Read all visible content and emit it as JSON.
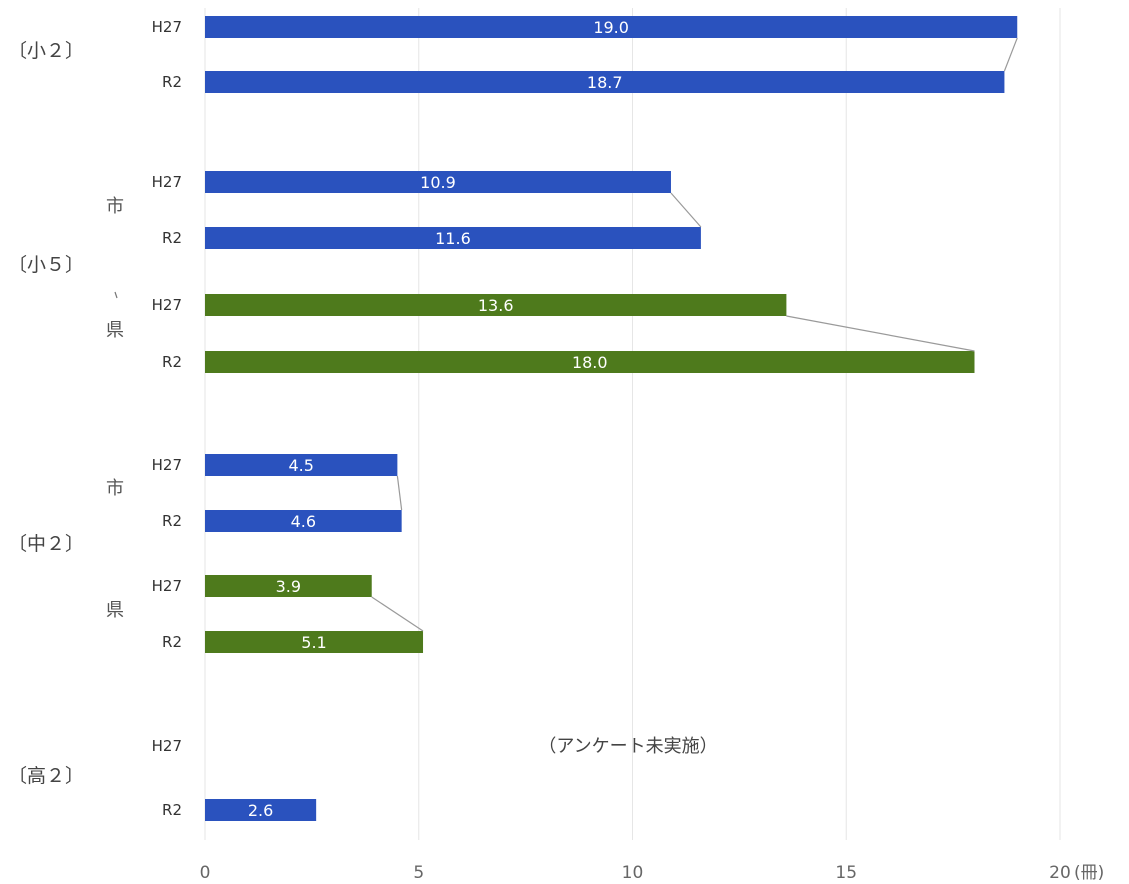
{
  "chart_data": {
    "type": "bar",
    "orientation": "horizontal",
    "unit_label": "(冊)",
    "xlim": [
      0,
      20
    ],
    "x_ticks": [
      0,
      5,
      10,
      15,
      20
    ],
    "grid": true,
    "colors": {
      "市": "#2a52be",
      "県": "#4e7a1c"
    },
    "groups": [
      {
        "name": "〔小２〕",
        "sides": [
          {
            "name": "",
            "color_key": "市",
            "rows": [
              {
                "year": "H27",
                "value": 19.0,
                "label": "19.0"
              },
              {
                "year": "R2",
                "value": 18.7,
                "label": "18.7"
              }
            ]
          }
        ]
      },
      {
        "name": "〔小５〕",
        "sides": [
          {
            "name": "市",
            "color_key": "市",
            "rows": [
              {
                "year": "H27",
                "value": 10.9,
                "label": "10.9"
              },
              {
                "year": "R2",
                "value": 11.6,
                "label": "11.6"
              }
            ]
          },
          {
            "name": "県",
            "color_key": "県",
            "rows": [
              {
                "year": "H27",
                "value": 13.6,
                "label": "13.6"
              },
              {
                "year": "R2",
                "value": 18.0,
                "label": "18.0"
              }
            ]
          }
        ]
      },
      {
        "name": "〔中２〕",
        "sides": [
          {
            "name": "市",
            "color_key": "市",
            "rows": [
              {
                "year": "H27",
                "value": 4.5,
                "label": "4.5"
              },
              {
                "year": "R2",
                "value": 4.6,
                "label": "4.6"
              }
            ]
          },
          {
            "name": "県",
            "color_key": "県",
            "rows": [
              {
                "year": "H27",
                "value": 3.9,
                "label": "3.9"
              },
              {
                "year": "R2",
                "value": 5.1,
                "label": "5.1"
              }
            ]
          }
        ]
      },
      {
        "name": "〔高２〕",
        "sides": [
          {
            "name": "",
            "color_key": "市",
            "rows": [
              {
                "year": "H27",
                "value": null,
                "label": ""
              },
              {
                "year": "R2",
                "value": 2.6,
                "label": "2.6"
              }
            ]
          }
        ]
      }
    ],
    "annotation": "（アンケート未実施）"
  }
}
